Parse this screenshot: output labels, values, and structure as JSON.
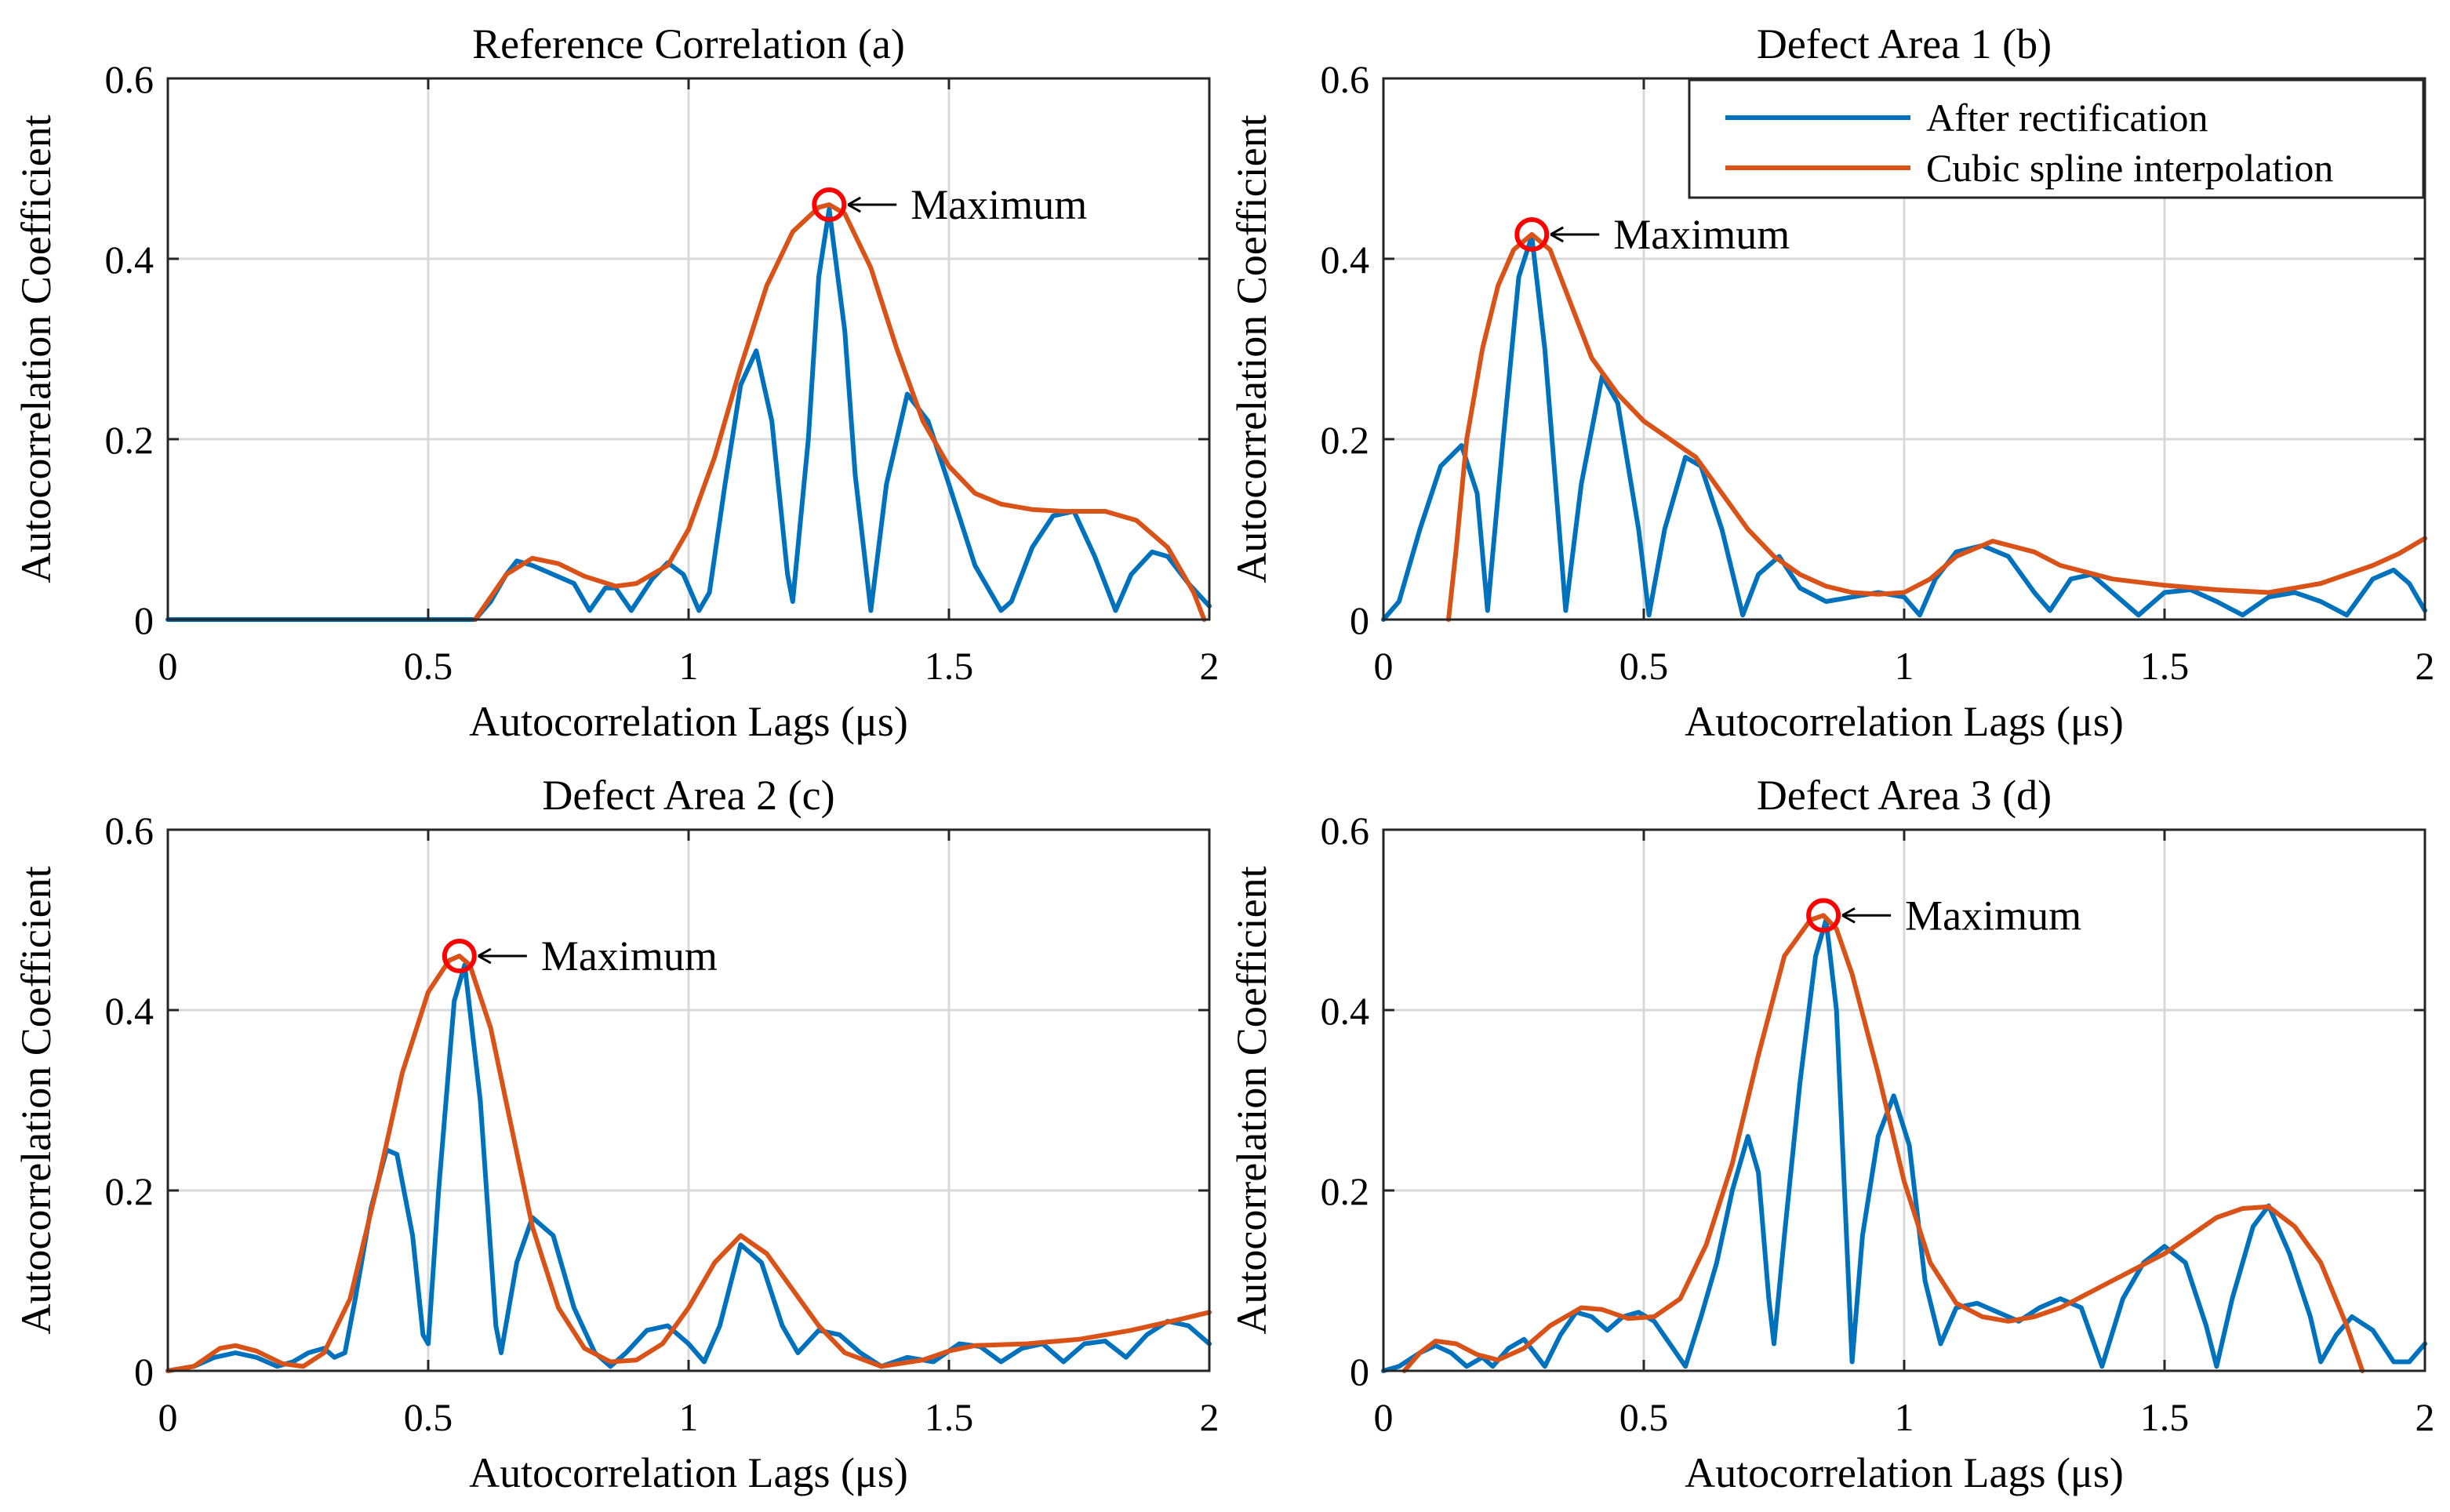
{
  "figure": {
    "colors": {
      "rectified": "#0072BD",
      "spline": "#D95319",
      "marker": "#FF0000",
      "grid": "#D9D9D9",
      "axis": "#262626"
    },
    "legend": {
      "placement": "top-right",
      "entries": [
        "After rectification",
        "Cubic spline interpolation"
      ]
    }
  },
  "chart_data": [
    {
      "id": "a",
      "type": "line",
      "title": "Reference Correlation (a)",
      "xlabel": "Autocorrelation Lags (μs)",
      "ylabel": "Autocorrelation Coefficient",
      "xlim": [
        0,
        2
      ],
      "ylim": [
        0,
        0.6
      ],
      "xticks": [
        0,
        0.5,
        1,
        1.5,
        2
      ],
      "xtick_labels": [
        "0",
        "0.5",
        "1",
        "1.5",
        "2"
      ],
      "yticks": [
        0,
        0.2,
        0.4,
        0.6
      ],
      "ytick_labels": [
        "0",
        "0.2",
        "0.4",
        "0.6"
      ],
      "grid": true,
      "annotation": {
        "text": "Maximum",
        "x": 1.27,
        "y": 0.46
      },
      "series": [
        {
          "name": "After rectification",
          "color": "#0072BD",
          "x": [
            0,
            0.3,
            0.59,
            0.62,
            0.65,
            0.67,
            0.7,
            0.74,
            0.78,
            0.81,
            0.84,
            0.86,
            0.89,
            0.93,
            0.96,
            0.99,
            1.02,
            1.04,
            1.07,
            1.1,
            1.13,
            1.16,
            1.19,
            1.2,
            1.23,
            1.25,
            1.27,
            1.3,
            1.32,
            1.35,
            1.38,
            1.42,
            1.46,
            1.5,
            1.55,
            1.6,
            1.62,
            1.66,
            1.7,
            1.74,
            1.78,
            1.82,
            1.85,
            1.89,
            1.92,
            1.96,
            2.0
          ],
          "y": [
            0,
            0,
            0,
            0.02,
            0.05,
            0.065,
            0.06,
            0.05,
            0.04,
            0.01,
            0.035,
            0.035,
            0.01,
            0.045,
            0.063,
            0.05,
            0.01,
            0.03,
            0.15,
            0.26,
            0.298,
            0.22,
            0.05,
            0.02,
            0.2,
            0.38,
            0.455,
            0.32,
            0.16,
            0.01,
            0.15,
            0.25,
            0.22,
            0.15,
            0.06,
            0.01,
            0.02,
            0.08,
            0.115,
            0.12,
            0.07,
            0.01,
            0.05,
            0.075,
            0.07,
            0.04,
            0.015
          ]
        },
        {
          "name": "Cubic spline interpolation",
          "color": "#D95319",
          "x": [
            0.59,
            0.62,
            0.65,
            0.7,
            0.75,
            0.8,
            0.86,
            0.9,
            0.96,
            1.0,
            1.05,
            1.1,
            1.15,
            1.2,
            1.25,
            1.27,
            1.3,
            1.35,
            1.4,
            1.45,
            1.5,
            1.55,
            1.6,
            1.66,
            1.72,
            1.8,
            1.86,
            1.92,
            1.97,
            1.99
          ],
          "y": [
            0,
            0.025,
            0.05,
            0.068,
            0.062,
            0.048,
            0.037,
            0.04,
            0.06,
            0.1,
            0.18,
            0.28,
            0.37,
            0.43,
            0.457,
            0.46,
            0.45,
            0.39,
            0.3,
            0.22,
            0.17,
            0.14,
            0.128,
            0.122,
            0.12,
            0.12,
            0.11,
            0.08,
            0.03,
            0
          ]
        }
      ]
    },
    {
      "id": "b",
      "type": "line",
      "title": "Defect Area 1 (b)",
      "xlabel": "Autocorrelation Lags (μs)",
      "ylabel": "Autocorrelation Coefficient",
      "xlim": [
        0,
        2
      ],
      "ylim": [
        0,
        0.6
      ],
      "xticks": [
        0,
        0.5,
        1,
        1.5,
        2
      ],
      "xtick_labels": [
        "0",
        "0.5",
        "1",
        "1.5",
        "2"
      ],
      "yticks": [
        0,
        0.2,
        0.4,
        0.6
      ],
      "ytick_labels": [
        "0",
        "0.2",
        "0.4",
        "0.6"
      ],
      "grid": true,
      "annotation": {
        "text": "Maximum",
        "x": 0.285,
        "y": 0.427
      },
      "legend": true,
      "series": [
        {
          "name": "After rectification",
          "color": "#0072BD",
          "x": [
            0,
            0.03,
            0.07,
            0.11,
            0.15,
            0.18,
            0.2,
            0.23,
            0.26,
            0.285,
            0.31,
            0.35,
            0.38,
            0.42,
            0.45,
            0.49,
            0.51,
            0.54,
            0.58,
            0.61,
            0.65,
            0.69,
            0.72,
            0.76,
            0.8,
            0.85,
            0.9,
            0.95,
            1.0,
            1.03,
            1.06,
            1.1,
            1.15,
            1.2,
            1.25,
            1.28,
            1.32,
            1.36,
            1.4,
            1.45,
            1.5,
            1.55,
            1.6,
            1.65,
            1.7,
            1.75,
            1.8,
            1.85,
            1.9,
            1.94,
            1.97,
            2.0
          ],
          "y": [
            0,
            0.02,
            0.1,
            0.17,
            0.193,
            0.14,
            0.01,
            0.2,
            0.38,
            0.425,
            0.3,
            0.01,
            0.15,
            0.27,
            0.24,
            0.1,
            0.005,
            0.1,
            0.18,
            0.17,
            0.1,
            0.005,
            0.05,
            0.07,
            0.035,
            0.02,
            0.025,
            0.03,
            0.025,
            0.005,
            0.045,
            0.075,
            0.082,
            0.07,
            0.03,
            0.01,
            0.045,
            0.05,
            0.03,
            0.005,
            0.03,
            0.033,
            0.02,
            0.005,
            0.025,
            0.03,
            0.02,
            0.005,
            0.045,
            0.055,
            0.04,
            0.01
          ]
        },
        {
          "name": "Cubic spline interpolation",
          "color": "#D95319",
          "x": [
            0.125,
            0.14,
            0.16,
            0.19,
            0.22,
            0.25,
            0.285,
            0.32,
            0.36,
            0.4,
            0.45,
            0.5,
            0.55,
            0.6,
            0.65,
            0.7,
            0.75,
            0.8,
            0.85,
            0.9,
            0.95,
            1.0,
            1.05,
            1.1,
            1.17,
            1.25,
            1.3,
            1.4,
            1.5,
            1.6,
            1.7,
            1.8,
            1.9,
            1.95,
            2.0
          ],
          "y": [
            0,
            0.08,
            0.2,
            0.3,
            0.37,
            0.41,
            0.427,
            0.41,
            0.35,
            0.29,
            0.25,
            0.22,
            0.2,
            0.18,
            0.14,
            0.1,
            0.07,
            0.05,
            0.037,
            0.03,
            0.028,
            0.03,
            0.045,
            0.07,
            0.087,
            0.075,
            0.06,
            0.045,
            0.038,
            0.033,
            0.03,
            0.04,
            0.06,
            0.073,
            0.09
          ]
        }
      ]
    },
    {
      "id": "c",
      "type": "line",
      "title": "Defect Area 2 (c)",
      "xlabel": "Autocorrelation Lags (μs)",
      "ylabel": "Autocorrelation Coefficient",
      "xlim": [
        0,
        2
      ],
      "ylim": [
        0,
        0.6
      ],
      "xticks": [
        0,
        0.5,
        1,
        1.5,
        2
      ],
      "xtick_labels": [
        "0",
        "0.5",
        "1",
        "1.5",
        "2"
      ],
      "yticks": [
        0,
        0.2,
        0.4,
        0.6
      ],
      "ytick_labels": [
        "0",
        "0.2",
        "0.4",
        "0.6"
      ],
      "grid": true,
      "annotation": {
        "text": "Maximum",
        "x": 0.56,
        "y": 0.46
      },
      "series": [
        {
          "name": "After rectification",
          "color": "#0072BD",
          "x": [
            0,
            0.05,
            0.09,
            0.13,
            0.17,
            0.21,
            0.24,
            0.27,
            0.3,
            0.32,
            0.34,
            0.36,
            0.39,
            0.42,
            0.44,
            0.47,
            0.49,
            0.5,
            0.52,
            0.55,
            0.57,
            0.6,
            0.63,
            0.64,
            0.67,
            0.7,
            0.74,
            0.78,
            0.82,
            0.85,
            0.88,
            0.92,
            0.96,
            1.0,
            1.03,
            1.06,
            1.1,
            1.14,
            1.18,
            1.21,
            1.25,
            1.29,
            1.33,
            1.37,
            1.42,
            1.47,
            1.52,
            1.56,
            1.6,
            1.64,
            1.68,
            1.72,
            1.76,
            1.8,
            1.84,
            1.88,
            1.92,
            1.96,
            2.0
          ],
          "y": [
            0,
            0.005,
            0.015,
            0.02,
            0.015,
            0.005,
            0.01,
            0.02,
            0.025,
            0.015,
            0.02,
            0.08,
            0.18,
            0.245,
            0.24,
            0.15,
            0.04,
            0.03,
            0.2,
            0.41,
            0.45,
            0.3,
            0.05,
            0.02,
            0.12,
            0.17,
            0.15,
            0.07,
            0.02,
            0.005,
            0.02,
            0.045,
            0.05,
            0.03,
            0.01,
            0.05,
            0.14,
            0.12,
            0.05,
            0.02,
            0.045,
            0.04,
            0.02,
            0.005,
            0.015,
            0.01,
            0.03,
            0.027,
            0.01,
            0.025,
            0.03,
            0.01,
            0.03,
            0.033,
            0.015,
            0.04,
            0.055,
            0.05,
            0.03
          ]
        },
        {
          "name": "Cubic spline interpolation",
          "color": "#D95319",
          "x": [
            0,
            0.05,
            0.1,
            0.13,
            0.17,
            0.22,
            0.26,
            0.3,
            0.35,
            0.4,
            0.45,
            0.5,
            0.54,
            0.56,
            0.58,
            0.62,
            0.66,
            0.7,
            0.75,
            0.8,
            0.85,
            0.9,
            0.95,
            1.0,
            1.05,
            1.1,
            1.15,
            1.2,
            1.25,
            1.3,
            1.37,
            1.45,
            1.5,
            1.55,
            1.65,
            1.75,
            1.85,
            1.95,
            2.0
          ],
          "y": [
            0,
            0.005,
            0.025,
            0.028,
            0.022,
            0.008,
            0.005,
            0.02,
            0.08,
            0.2,
            0.33,
            0.42,
            0.455,
            0.46,
            0.45,
            0.38,
            0.27,
            0.16,
            0.07,
            0.025,
            0.01,
            0.012,
            0.03,
            0.07,
            0.12,
            0.15,
            0.13,
            0.09,
            0.05,
            0.02,
            0.005,
            0.012,
            0.022,
            0.028,
            0.03,
            0.035,
            0.045,
            0.058,
            0.065
          ]
        }
      ]
    },
    {
      "id": "d",
      "type": "line",
      "title": "Defect Area 3 (d)",
      "xlabel": "Autocorrelation Lags (μs)",
      "ylabel": "Autocorrelation Coefficient",
      "xlim": [
        0,
        2
      ],
      "ylim": [
        0,
        0.6
      ],
      "xticks": [
        0,
        0.5,
        1,
        1.5,
        2
      ],
      "xtick_labels": [
        "0",
        "0.5",
        "1",
        "1.5",
        "2"
      ],
      "yticks": [
        0,
        0.2,
        0.4,
        0.6
      ],
      "ytick_labels": [
        "0",
        "0.2",
        "0.4",
        "0.6"
      ],
      "grid": true,
      "annotation": {
        "text": "Maximum",
        "x": 0.845,
        "y": 0.505
      },
      "series": [
        {
          "name": "After rectification",
          "color": "#0072BD",
          "x": [
            0,
            0.03,
            0.07,
            0.1,
            0.13,
            0.16,
            0.19,
            0.21,
            0.24,
            0.27,
            0.29,
            0.31,
            0.34,
            0.37,
            0.4,
            0.43,
            0.46,
            0.49,
            0.52,
            0.55,
            0.58,
            0.61,
            0.64,
            0.67,
            0.7,
            0.72,
            0.74,
            0.75,
            0.77,
            0.8,
            0.83,
            0.85,
            0.87,
            0.9,
            0.92,
            0.95,
            0.98,
            1.01,
            1.04,
            1.07,
            1.1,
            1.14,
            1.18,
            1.22,
            1.26,
            1.3,
            1.34,
            1.38,
            1.42,
            1.46,
            1.5,
            1.54,
            1.58,
            1.6,
            1.63,
            1.67,
            1.7,
            1.74,
            1.78,
            1.8,
            1.83,
            1.86,
            1.9,
            1.94,
            1.97,
            2.0
          ],
          "y": [
            0,
            0.005,
            0.02,
            0.028,
            0.02,
            0.005,
            0.015,
            0.005,
            0.025,
            0.035,
            0.02,
            0.005,
            0.04,
            0.065,
            0.06,
            0.045,
            0.06,
            0.065,
            0.055,
            0.03,
            0.005,
            0.06,
            0.12,
            0.2,
            0.26,
            0.22,
            0.08,
            0.03,
            0.15,
            0.32,
            0.46,
            0.5,
            0.4,
            0.01,
            0.15,
            0.26,
            0.305,
            0.25,
            0.1,
            0.03,
            0.07,
            0.075,
            0.065,
            0.055,
            0.07,
            0.08,
            0.07,
            0.005,
            0.08,
            0.12,
            0.138,
            0.12,
            0.05,
            0.005,
            0.08,
            0.16,
            0.183,
            0.13,
            0.06,
            0.01,
            0.04,
            0.06,
            0.045,
            0.01,
            0.01,
            0.03
          ]
        },
        {
          "name": "Cubic spline interpolation",
          "color": "#D95319",
          "x": [
            0.04,
            0.07,
            0.1,
            0.14,
            0.18,
            0.22,
            0.27,
            0.32,
            0.38,
            0.42,
            0.47,
            0.52,
            0.57,
            0.62,
            0.67,
            0.72,
            0.77,
            0.82,
            0.845,
            0.87,
            0.9,
            0.95,
            1.0,
            1.05,
            1.1,
            1.15,
            1.2,
            1.25,
            1.3,
            1.35,
            1.4,
            1.45,
            1.5,
            1.55,
            1.6,
            1.65,
            1.7,
            1.75,
            1.8,
            1.85,
            1.88
          ],
          "y": [
            0,
            0.02,
            0.033,
            0.03,
            0.018,
            0.012,
            0.025,
            0.05,
            0.07,
            0.068,
            0.058,
            0.06,
            0.08,
            0.14,
            0.23,
            0.35,
            0.46,
            0.5,
            0.505,
            0.49,
            0.44,
            0.33,
            0.21,
            0.12,
            0.075,
            0.06,
            0.055,
            0.06,
            0.07,
            0.085,
            0.1,
            0.115,
            0.13,
            0.15,
            0.17,
            0.18,
            0.182,
            0.16,
            0.12,
            0.05,
            0
          ]
        }
      ]
    }
  ]
}
